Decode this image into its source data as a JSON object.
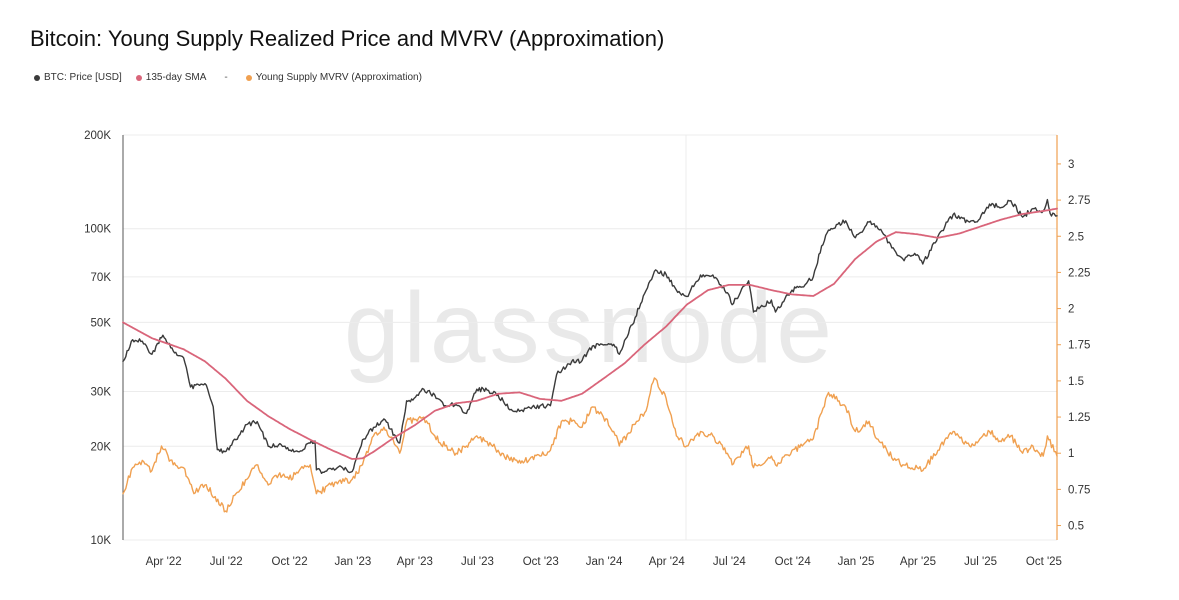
{
  "title": "Bitcoin: Young Supply Realized Price and MVRV (Approximation)",
  "legend": [
    {
      "name": "btc-price",
      "label": "BTC: Price [USD]",
      "color": "#3a3a3a"
    },
    {
      "name": "sma",
      "label": "135-day SMA",
      "color": "#d9657a"
    },
    {
      "name": "sep",
      "label": "-",
      "color": ""
    },
    {
      "name": "mvrv",
      "label": "Young Supply MVRV (Approximation)",
      "color": "#f0a050"
    }
  ],
  "watermark": "glassnode",
  "chart_data": {
    "type": "line",
    "title": "Bitcoin: Young Supply Realized Price and MVRV (Approximation)",
    "x_ticks": [
      "Apr '22",
      "Jul '22",
      "Oct '22",
      "Jan '23",
      "Apr '23",
      "Jul '23",
      "Oct '23",
      "Jan '24",
      "Apr '24",
      "Jul '24",
      "Oct '24",
      "Jan '25",
      "Apr '25",
      "Jul '25",
      "Oct '25"
    ],
    "x_range": [
      "2022-02-01",
      "2025-10-20"
    ],
    "y_left": {
      "scale": "log",
      "range": [
        10000,
        200000
      ],
      "ticks": [
        10000,
        20000,
        30000,
        50000,
        70000,
        100000,
        200000
      ],
      "tick_labels": [
        "10K",
        "20K",
        "30K",
        "50K",
        "70K",
        "100K",
        "200K"
      ]
    },
    "y_right": {
      "scale": "linear",
      "range": [
        0.4,
        3.2
      ],
      "ticks": [
        0.5,
        0.75,
        1,
        1.25,
        1.5,
        1.75,
        2,
        2.25,
        2.5,
        2.75,
        3
      ],
      "tick_labels": [
        "0.5",
        "0.75",
        "1",
        "1.25",
        "1.5",
        "1.75",
        "2",
        "2.25",
        "2.5",
        "2.75",
        "3"
      ]
    },
    "series": [
      {
        "name": "BTC: Price [USD]",
        "axis": "left",
        "color": "#3a3a3a",
        "x": [
          "2022-02-01",
          "2022-02-15",
          "2022-03-01",
          "2022-03-15",
          "2022-03-31",
          "2022-04-15",
          "2022-04-30",
          "2022-05-10",
          "2022-05-31",
          "2022-06-12",
          "2022-06-18",
          "2022-07-01",
          "2022-07-15",
          "2022-07-31",
          "2022-08-15",
          "2022-08-31",
          "2022-09-15",
          "2022-09-30",
          "2022-10-15",
          "2022-10-31",
          "2022-11-07",
          "2022-11-09",
          "2022-11-20",
          "2022-12-15",
          "2022-12-31",
          "2023-01-15",
          "2023-01-31",
          "2023-02-15",
          "2023-03-10",
          "2023-03-20",
          "2023-03-31",
          "2023-04-14",
          "2023-04-30",
          "2023-05-15",
          "2023-05-31",
          "2023-06-15",
          "2023-06-30",
          "2023-07-15",
          "2023-07-31",
          "2023-08-17",
          "2023-08-31",
          "2023-09-15",
          "2023-09-30",
          "2023-10-15",
          "2023-10-24",
          "2023-11-15",
          "2023-11-30",
          "2023-12-15",
          "2023-12-31",
          "2024-01-15",
          "2024-01-23",
          "2024-02-15",
          "2024-02-29",
          "2024-03-14",
          "2024-03-31",
          "2024-04-15",
          "2024-04-30",
          "2024-05-20",
          "2024-06-07",
          "2024-06-30",
          "2024-07-05",
          "2024-07-29",
          "2024-08-05",
          "2024-08-31",
          "2024-09-06",
          "2024-09-30",
          "2024-10-15",
          "2024-10-31",
          "2024-11-12",
          "2024-11-22",
          "2024-12-17",
          "2024-12-31",
          "2025-01-20",
          "2025-01-31",
          "2025-02-28",
          "2025-03-10",
          "2025-03-31",
          "2025-04-08",
          "2025-04-30",
          "2025-05-22",
          "2025-06-15",
          "2025-06-30",
          "2025-07-14",
          "2025-07-31",
          "2025-08-14",
          "2025-08-31",
          "2025-09-15",
          "2025-09-30",
          "2025-10-06",
          "2025-10-10",
          "2025-10-20"
        ],
        "values": [
          37500,
          44000,
          43500,
          39500,
          45500,
          40500,
          38500,
          31000,
          31800,
          26800,
          19500,
          19300,
          21000,
          23500,
          24000,
          20000,
          20200,
          19400,
          19200,
          20500,
          20800,
          16800,
          16500,
          17200,
          16600,
          21000,
          23000,
          24500,
          20500,
          28000,
          28500,
          30500,
          29200,
          27000,
          27200,
          25500,
          30500,
          30300,
          29200,
          26200,
          25900,
          26600,
          27000,
          27000,
          34000,
          37500,
          37700,
          42000,
          42300,
          42500,
          39500,
          51800,
          62000,
          73000,
          71300,
          63500,
          60600,
          71000,
          71000,
          61500,
          57000,
          68000,
          54000,
          59000,
          54000,
          63500,
          65000,
          70000,
          88000,
          99000,
          106000,
          93500,
          105000,
          102000,
          84000,
          80000,
          82500,
          77000,
          94500,
          111000,
          105000,
          107500,
          120000,
          117000,
          123000,
          109000,
          116000,
          114000,
          124000,
          112000,
          110000
        ]
      },
      {
        "name": "135-day SMA",
        "axis": "left",
        "color": "#d9657a",
        "x": [
          "2022-02-01",
          "2022-03-15",
          "2022-04-30",
          "2022-05-31",
          "2022-06-30",
          "2022-07-31",
          "2022-08-31",
          "2022-09-30",
          "2022-10-31",
          "2022-11-30",
          "2022-12-31",
          "2023-01-15",
          "2023-01-31",
          "2023-02-28",
          "2023-03-31",
          "2023-04-30",
          "2023-05-31",
          "2023-06-30",
          "2023-07-31",
          "2023-08-31",
          "2023-09-30",
          "2023-10-31",
          "2023-11-30",
          "2023-12-31",
          "2024-01-31",
          "2024-02-29",
          "2024-03-31",
          "2024-04-30",
          "2024-05-31",
          "2024-06-30",
          "2024-07-31",
          "2024-08-31",
          "2024-09-30",
          "2024-10-31",
          "2024-11-30",
          "2024-12-31",
          "2025-01-31",
          "2025-02-28",
          "2025-03-31",
          "2025-04-30",
          "2025-05-31",
          "2025-06-30",
          "2025-07-31",
          "2025-08-31",
          "2025-09-30",
          "2025-10-20"
        ],
        "values": [
          50000,
          44500,
          41000,
          37500,
          33000,
          28000,
          25000,
          22800,
          21000,
          19500,
          18200,
          18300,
          19200,
          21200,
          23300,
          26000,
          27500,
          28000,
          29500,
          29800,
          28400,
          28000,
          29500,
          33000,
          37000,
          42500,
          48500,
          57000,
          63500,
          66000,
          66000,
          63500,
          61500,
          60800,
          66500,
          80000,
          91000,
          97500,
          96000,
          93500,
          96500,
          101500,
          107000,
          111500,
          114000,
          116000
        ]
      },
      {
        "name": "Young Supply MVRV (Approximation)",
        "axis": "right",
        "color": "#f0a050",
        "x": [
          "2022-02-01",
          "2022-02-15",
          "2022-03-01",
          "2022-03-15",
          "2022-03-29",
          "2022-04-15",
          "2022-04-30",
          "2022-05-15",
          "2022-05-31",
          "2022-06-15",
          "2022-06-30",
          "2022-07-15",
          "2022-07-31",
          "2022-08-14",
          "2022-08-31",
          "2022-09-15",
          "2022-09-30",
          "2022-10-15",
          "2022-10-31",
          "2022-11-09",
          "2022-11-30",
          "2022-12-31",
          "2023-01-15",
          "2023-01-31",
          "2023-02-15",
          "2023-03-10",
          "2023-03-20",
          "2023-04-14",
          "2023-04-30",
          "2023-05-15",
          "2023-05-31",
          "2023-06-15",
          "2023-06-30",
          "2023-07-15",
          "2023-07-31",
          "2023-08-17",
          "2023-08-31",
          "2023-09-15",
          "2023-09-30",
          "2023-10-15",
          "2023-10-31",
          "2023-11-15",
          "2023-11-30",
          "2023-12-15",
          "2023-12-31",
          "2024-01-15",
          "2024-01-23",
          "2024-02-15",
          "2024-02-29",
          "2024-03-14",
          "2024-03-31",
          "2024-04-15",
          "2024-04-30",
          "2024-05-20",
          "2024-06-07",
          "2024-06-30",
          "2024-07-05",
          "2024-07-29",
          "2024-08-05",
          "2024-08-31",
          "2024-09-06",
          "2024-09-30",
          "2024-10-15",
          "2024-10-31",
          "2024-11-12",
          "2024-11-22",
          "2024-12-17",
          "2024-12-31",
          "2025-01-20",
          "2025-01-31",
          "2025-02-28",
          "2025-03-10",
          "2025-03-31",
          "2025-04-08",
          "2025-04-30",
          "2025-05-22",
          "2025-06-15",
          "2025-06-30",
          "2025-07-14",
          "2025-07-31",
          "2025-08-14",
          "2025-08-31",
          "2025-09-15",
          "2025-09-30",
          "2025-10-06",
          "2025-10-20"
        ],
        "values": [
          0.72,
          0.9,
          0.95,
          0.88,
          1.05,
          0.92,
          0.9,
          0.72,
          0.78,
          0.7,
          0.6,
          0.72,
          0.82,
          0.92,
          0.78,
          0.85,
          0.82,
          0.88,
          0.92,
          0.72,
          0.78,
          0.82,
          0.92,
          1.12,
          1.18,
          1.0,
          1.22,
          1.25,
          1.12,
          1.05,
          1.0,
          1.05,
          1.12,
          1.08,
          1.02,
          0.95,
          0.95,
          0.96,
          0.98,
          1.02,
          1.22,
          1.22,
          1.18,
          1.32,
          1.25,
          1.15,
          1.05,
          1.2,
          1.28,
          1.52,
          1.38,
          1.12,
          1.05,
          1.15,
          1.12,
          0.98,
          0.92,
          1.05,
          0.9,
          0.98,
          0.92,
          1.02,
          1.05,
          1.1,
          1.28,
          1.42,
          1.32,
          1.15,
          1.22,
          1.1,
          0.95,
          0.92,
          0.9,
          0.88,
          1.02,
          1.15,
          1.05,
          1.1,
          1.15,
          1.08,
          1.12,
          1.0,
          1.05,
          0.98,
          1.12,
          0.98
        ]
      }
    ]
  }
}
